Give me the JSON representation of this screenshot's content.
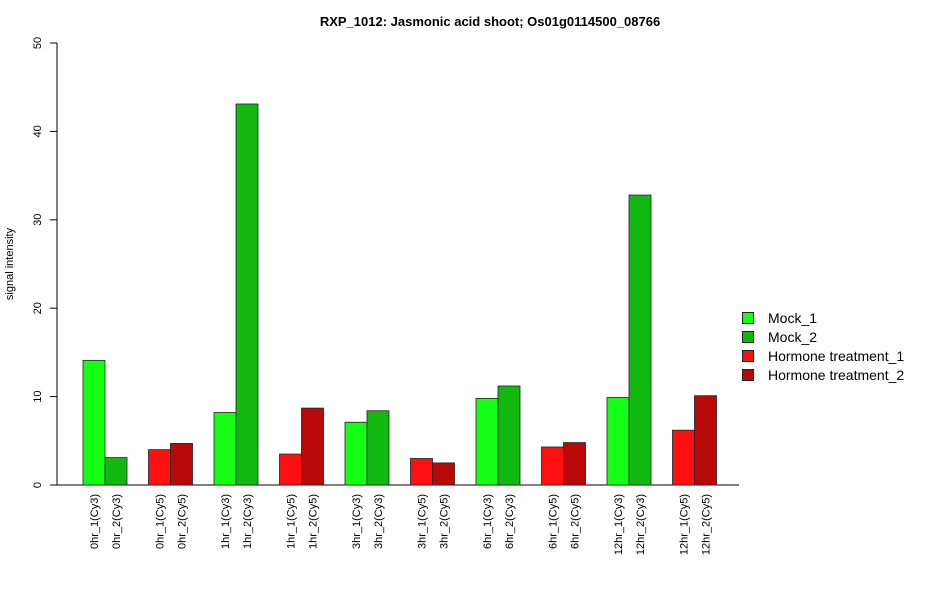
{
  "chart_data": {
    "type": "bar",
    "title": "RXP_1012: Jasmonic acid shoot; Os01g0114500_08766",
    "ylabel": "signal intensity",
    "xlabel": "",
    "ylim": [
      0,
      50
    ],
    "yticks": [
      0,
      10,
      20,
      30,
      40,
      50
    ],
    "grid": false,
    "legend_position": "right",
    "groups": [
      {
        "bars": [
          {
            "label": "0hr_1(Cy3)",
            "value": 14.1,
            "series": 0
          },
          {
            "label": "0hr_2(Cy3)",
            "value": 3.1,
            "series": 1
          }
        ]
      },
      {
        "bars": [
          {
            "label": "0hr_1(Cy5)",
            "value": 4.0,
            "series": 2
          },
          {
            "label": "0hr_2(Cy5)",
            "value": 4.7,
            "series": 3
          }
        ]
      },
      {
        "bars": [
          {
            "label": "1hr_1(Cy3)",
            "value": 8.2,
            "series": 0
          },
          {
            "label": "1hr_2(Cy3)",
            "value": 43.1,
            "series": 1
          }
        ]
      },
      {
        "bars": [
          {
            "label": "1hr_1(Cy5)",
            "value": 3.5,
            "series": 2
          },
          {
            "label": "1hr_2(Cy5)",
            "value": 8.7,
            "series": 3
          }
        ]
      },
      {
        "bars": [
          {
            "label": "3hr_1(Cy3)",
            "value": 7.1,
            "series": 0
          },
          {
            "label": "3hr_2(Cy3)",
            "value": 8.4,
            "series": 1
          }
        ]
      },
      {
        "bars": [
          {
            "label": "3hr_1(Cy5)",
            "value": 3.0,
            "series": 2
          },
          {
            "label": "3hr_2(Cy5)",
            "value": 2.5,
            "series": 3
          }
        ]
      },
      {
        "bars": [
          {
            "label": "6hr_1(Cy3)",
            "value": 9.8,
            "series": 0
          },
          {
            "label": "6hr_2(Cy3)",
            "value": 11.2,
            "series": 1
          }
        ]
      },
      {
        "bars": [
          {
            "label": "6hr_1(Cy5)",
            "value": 4.3,
            "series": 2
          },
          {
            "label": "6hr_2(Cy5)",
            "value": 4.8,
            "series": 3
          }
        ]
      },
      {
        "bars": [
          {
            "label": "12hr_1(Cy3)",
            "value": 9.9,
            "series": 0
          },
          {
            "label": "12hr_2(Cy3)",
            "value": 32.8,
            "series": 1
          }
        ]
      },
      {
        "bars": [
          {
            "label": "12hr_1(Cy5)",
            "value": 6.2,
            "series": 2
          },
          {
            "label": "12hr_2(Cy5)",
            "value": 10.1,
            "series": 3
          }
        ]
      }
    ],
    "series": [
      {
        "name": "Mock_1",
        "color": "#14ff14"
      },
      {
        "name": "Mock_2",
        "color": "#10b810"
      },
      {
        "name": "Hormone treatment_1",
        "color": "#ff1010"
      },
      {
        "name": "Hormone treatment_2",
        "color": "#b80808"
      }
    ]
  }
}
